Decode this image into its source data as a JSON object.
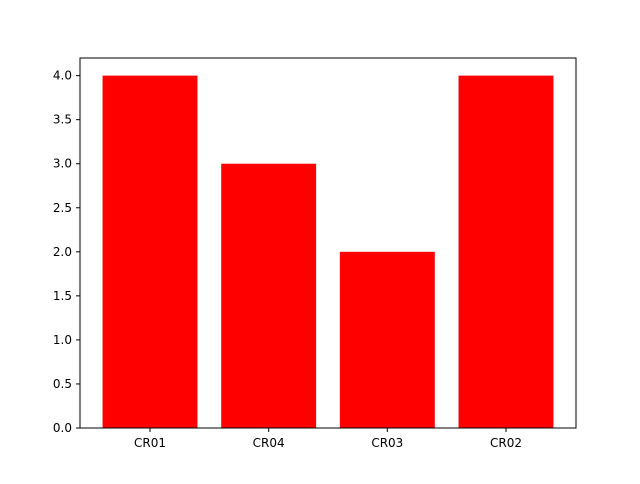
{
  "chart_data": {
    "type": "bar",
    "categories": [
      "CR01",
      "CR04",
      "CR03",
      "CR02"
    ],
    "values": [
      4,
      3,
      2,
      4
    ],
    "title": "",
    "xlabel": "",
    "ylabel": "",
    "ylim": [
      0,
      4.2
    ],
    "yticks": [
      0.0,
      0.5,
      1.0,
      1.5,
      2.0,
      2.5,
      3.0,
      3.5,
      4.0
    ],
    "ytick_labels": [
      "0.0",
      "0.5",
      "1.0",
      "1.5",
      "2.0",
      "2.5",
      "3.0",
      "3.5",
      "4.0"
    ],
    "bar_color": "#ff0000",
    "grid": false,
    "legend": "none"
  }
}
